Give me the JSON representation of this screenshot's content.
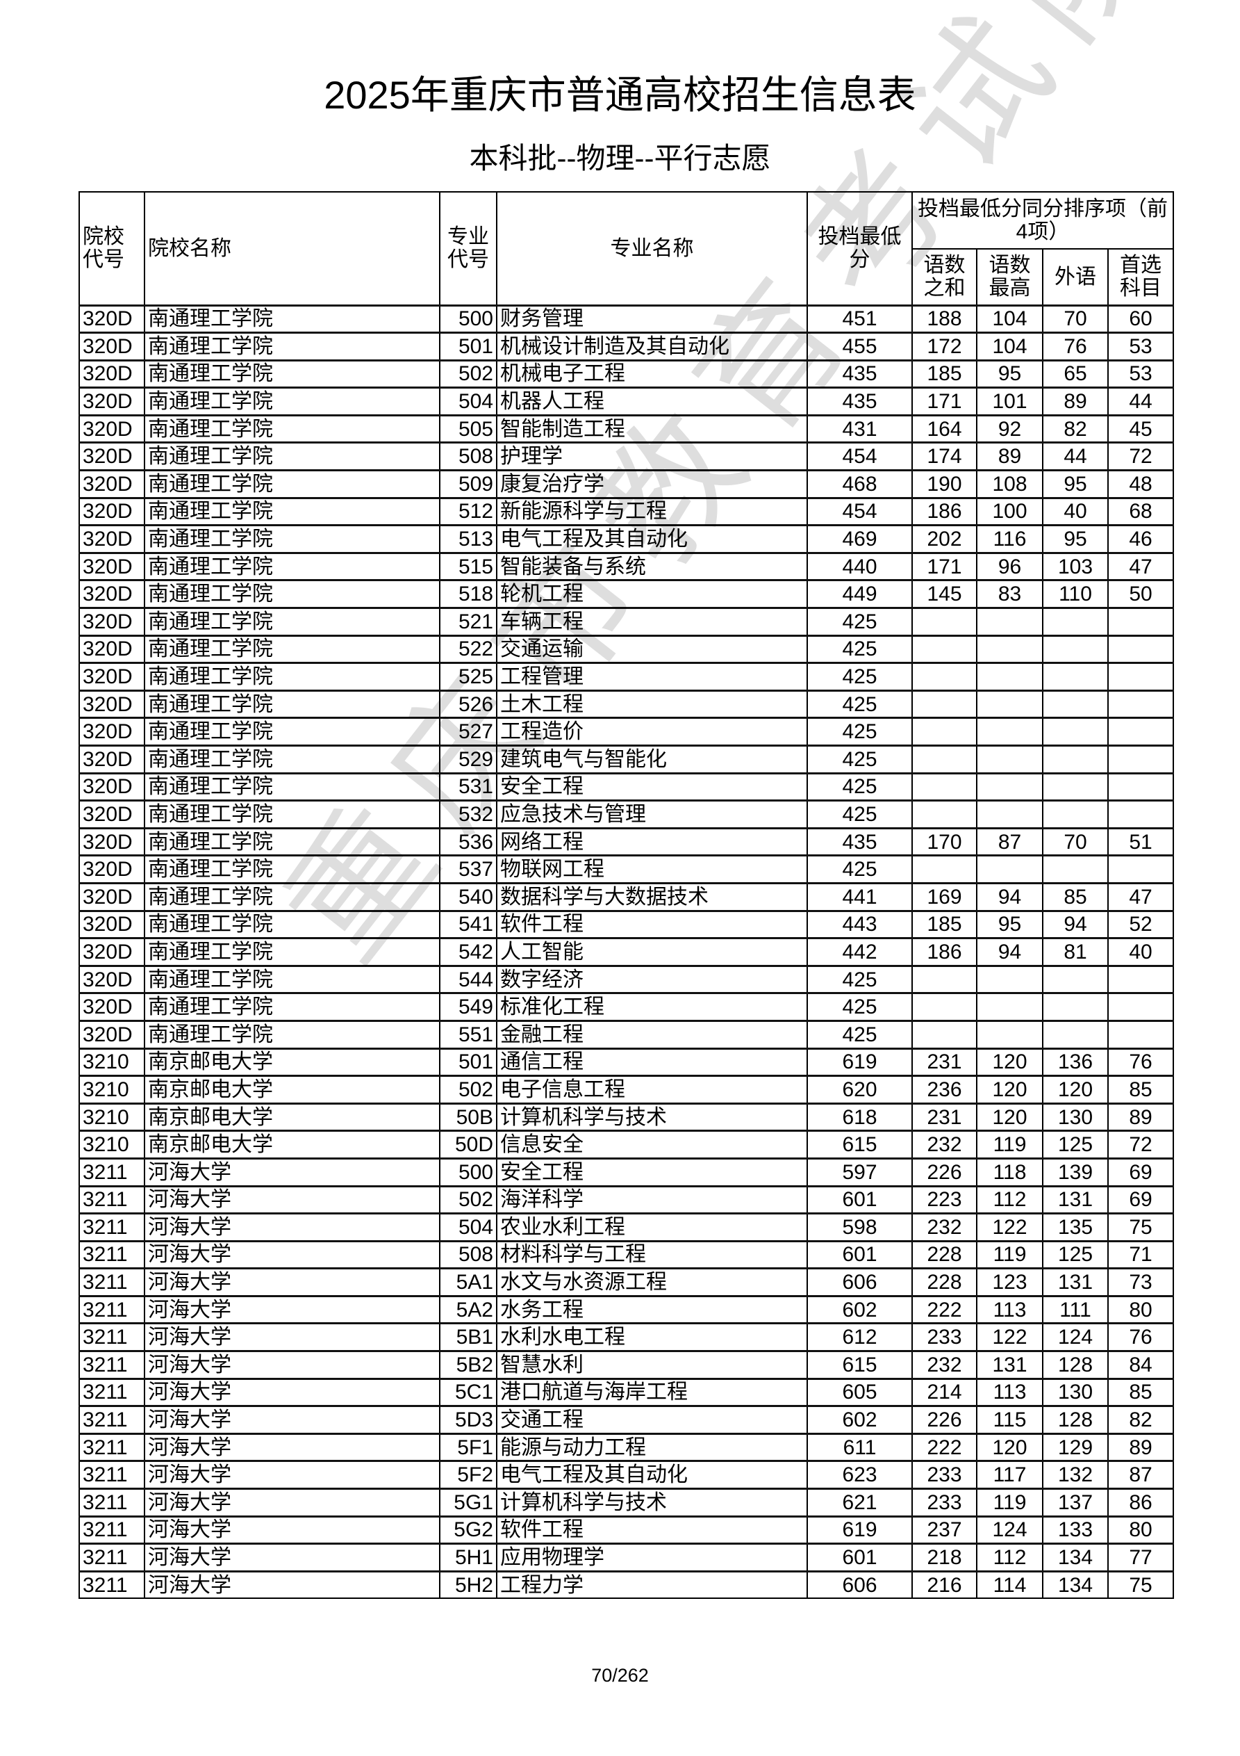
{
  "title": "2025年重庆市普通高校招生信息表",
  "subtitle": "本科批--物理--平行志愿",
  "watermark": "重庆市教育考试院",
  "headers": {
    "school_code": "院校代号",
    "school_name": "院校名称",
    "major_code": "专业代号",
    "major_name": "专业名称",
    "min_score": "投档最低分",
    "tiebreak_group": "投档最低分同分排序项（前4项）",
    "tb1": "语数之和",
    "tb2": "语数最高",
    "tb3": "外语",
    "tb4": "首选科目"
  },
  "rows": [
    [
      "320D",
      "南通理工学院",
      "500",
      "财务管理",
      "451",
      "188",
      "104",
      "70",
      "60"
    ],
    [
      "320D",
      "南通理工学院",
      "501",
      "机械设计制造及其自动化",
      "455",
      "172",
      "104",
      "76",
      "53"
    ],
    [
      "320D",
      "南通理工学院",
      "502",
      "机械电子工程",
      "435",
      "185",
      "95",
      "65",
      "53"
    ],
    [
      "320D",
      "南通理工学院",
      "504",
      "机器人工程",
      "435",
      "171",
      "101",
      "89",
      "44"
    ],
    [
      "320D",
      "南通理工学院",
      "505",
      "智能制造工程",
      "431",
      "164",
      "92",
      "82",
      "45"
    ],
    [
      "320D",
      "南通理工学院",
      "508",
      "护理学",
      "454",
      "174",
      "89",
      "44",
      "72"
    ],
    [
      "320D",
      "南通理工学院",
      "509",
      "康复治疗学",
      "468",
      "190",
      "108",
      "95",
      "48"
    ],
    [
      "320D",
      "南通理工学院",
      "512",
      "新能源科学与工程",
      "454",
      "186",
      "100",
      "40",
      "68"
    ],
    [
      "320D",
      "南通理工学院",
      "513",
      "电气工程及其自动化",
      "469",
      "202",
      "116",
      "95",
      "46"
    ],
    [
      "320D",
      "南通理工学院",
      "515",
      "智能装备与系统",
      "440",
      "171",
      "96",
      "103",
      "47"
    ],
    [
      "320D",
      "南通理工学院",
      "518",
      "轮机工程",
      "449",
      "145",
      "83",
      "110",
      "50"
    ],
    [
      "320D",
      "南通理工学院",
      "521",
      "车辆工程",
      "425",
      "",
      "",
      "",
      ""
    ],
    [
      "320D",
      "南通理工学院",
      "522",
      "交通运输",
      "425",
      "",
      "",
      "",
      ""
    ],
    [
      "320D",
      "南通理工学院",
      "525",
      "工程管理",
      "425",
      "",
      "",
      "",
      ""
    ],
    [
      "320D",
      "南通理工学院",
      "526",
      "土木工程",
      "425",
      "",
      "",
      "",
      ""
    ],
    [
      "320D",
      "南通理工学院",
      "527",
      "工程造价",
      "425",
      "",
      "",
      "",
      ""
    ],
    [
      "320D",
      "南通理工学院",
      "529",
      "建筑电气与智能化",
      "425",
      "",
      "",
      "",
      ""
    ],
    [
      "320D",
      "南通理工学院",
      "531",
      "安全工程",
      "425",
      "",
      "",
      "",
      ""
    ],
    [
      "320D",
      "南通理工学院",
      "532",
      "应急技术与管理",
      "425",
      "",
      "",
      "",
      ""
    ],
    [
      "320D",
      "南通理工学院",
      "536",
      "网络工程",
      "435",
      "170",
      "87",
      "70",
      "51"
    ],
    [
      "320D",
      "南通理工学院",
      "537",
      "物联网工程",
      "425",
      "",
      "",
      "",
      ""
    ],
    [
      "320D",
      "南通理工学院",
      "540",
      "数据科学与大数据技术",
      "441",
      "169",
      "94",
      "85",
      "47"
    ],
    [
      "320D",
      "南通理工学院",
      "541",
      "软件工程",
      "443",
      "185",
      "95",
      "94",
      "52"
    ],
    [
      "320D",
      "南通理工学院",
      "542",
      "人工智能",
      "442",
      "186",
      "94",
      "81",
      "40"
    ],
    [
      "320D",
      "南通理工学院",
      "544",
      "数字经济",
      "425",
      "",
      "",
      "",
      ""
    ],
    [
      "320D",
      "南通理工学院",
      "549",
      "标准化工程",
      "425",
      "",
      "",
      "",
      ""
    ],
    [
      "320D",
      "南通理工学院",
      "551",
      "金融工程",
      "425",
      "",
      "",
      "",
      ""
    ],
    [
      "3210",
      "南京邮电大学",
      "501",
      "通信工程",
      "619",
      "231",
      "120",
      "136",
      "76"
    ],
    [
      "3210",
      "南京邮电大学",
      "502",
      "电子信息工程",
      "620",
      "236",
      "120",
      "120",
      "85"
    ],
    [
      "3210",
      "南京邮电大学",
      "50B",
      "计算机科学与技术",
      "618",
      "231",
      "120",
      "130",
      "89"
    ],
    [
      "3210",
      "南京邮电大学",
      "50D",
      "信息安全",
      "615",
      "232",
      "119",
      "125",
      "72"
    ],
    [
      "3211",
      "河海大学",
      "500",
      "安全工程",
      "597",
      "226",
      "118",
      "139",
      "69"
    ],
    [
      "3211",
      "河海大学",
      "502",
      "海洋科学",
      "601",
      "223",
      "112",
      "131",
      "69"
    ],
    [
      "3211",
      "河海大学",
      "504",
      "农业水利工程",
      "598",
      "232",
      "122",
      "135",
      "75"
    ],
    [
      "3211",
      "河海大学",
      "508",
      "材料科学与工程",
      "601",
      "228",
      "119",
      "125",
      "71"
    ],
    [
      "3211",
      "河海大学",
      "5A1",
      "水文与水资源工程",
      "606",
      "228",
      "123",
      "131",
      "73"
    ],
    [
      "3211",
      "河海大学",
      "5A2",
      "水务工程",
      "602",
      "222",
      "113",
      "111",
      "80"
    ],
    [
      "3211",
      "河海大学",
      "5B1",
      "水利水电工程",
      "612",
      "233",
      "122",
      "124",
      "76"
    ],
    [
      "3211",
      "河海大学",
      "5B2",
      "智慧水利",
      "615",
      "232",
      "131",
      "128",
      "84"
    ],
    [
      "3211",
      "河海大学",
      "5C1",
      "港口航道与海岸工程",
      "605",
      "214",
      "113",
      "130",
      "85"
    ],
    [
      "3211",
      "河海大学",
      "5D3",
      "交通工程",
      "602",
      "226",
      "115",
      "128",
      "82"
    ],
    [
      "3211",
      "河海大学",
      "5F1",
      "能源与动力工程",
      "611",
      "222",
      "120",
      "129",
      "89"
    ],
    [
      "3211",
      "河海大学",
      "5F2",
      "电气工程及其自动化",
      "623",
      "233",
      "117",
      "132",
      "87"
    ],
    [
      "3211",
      "河海大学",
      "5G1",
      "计算机科学与技术",
      "621",
      "233",
      "119",
      "137",
      "86"
    ],
    [
      "3211",
      "河海大学",
      "5G2",
      "软件工程",
      "619",
      "237",
      "124",
      "133",
      "80"
    ],
    [
      "3211",
      "河海大学",
      "5H1",
      "应用物理学",
      "601",
      "218",
      "112",
      "134",
      "77"
    ],
    [
      "3211",
      "河海大学",
      "5H2",
      "工程力学",
      "606",
      "216",
      "114",
      "134",
      "75"
    ]
  ],
  "page_number": "70/262"
}
